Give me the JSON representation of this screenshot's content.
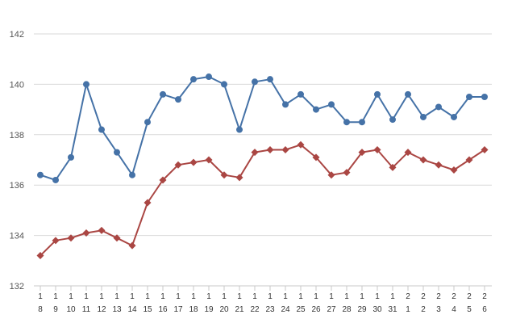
{
  "chart_data": {
    "type": "line",
    "title": "",
    "xlabel": "",
    "ylabel": "",
    "ylim": [
      132,
      142
    ],
    "yticks": [
      132,
      134,
      136,
      138,
      140,
      142
    ],
    "grid": true,
    "legend": "none",
    "categories": [
      [
        "1",
        "8"
      ],
      [
        "1",
        "9"
      ],
      [
        "1",
        "10"
      ],
      [
        "1",
        "11"
      ],
      [
        "1",
        "12"
      ],
      [
        "1",
        "13"
      ],
      [
        "1",
        "14"
      ],
      [
        "1",
        "15"
      ],
      [
        "1",
        "16"
      ],
      [
        "1",
        "17"
      ],
      [
        "1",
        "18"
      ],
      [
        "1",
        "19"
      ],
      [
        "1",
        "20"
      ],
      [
        "1",
        "21"
      ],
      [
        "1",
        "22"
      ],
      [
        "1",
        "23"
      ],
      [
        "1",
        "24"
      ],
      [
        "1",
        "25"
      ],
      [
        "1",
        "26"
      ],
      [
        "1",
        "27"
      ],
      [
        "1",
        "28"
      ],
      [
        "1",
        "29"
      ],
      [
        "1",
        "30"
      ],
      [
        "1",
        "31"
      ],
      [
        "2",
        "1"
      ],
      [
        "2",
        "2"
      ],
      [
        "2",
        "3"
      ],
      [
        "2",
        "4"
      ],
      [
        "2",
        "5"
      ],
      [
        "2",
        "6"
      ]
    ],
    "series": [
      {
        "color": "#4572a7",
        "marker": "circle",
        "values": [
          136.4,
          136.2,
          137.1,
          140.0,
          138.2,
          137.3,
          136.4,
          138.5,
          139.6,
          139.4,
          140.2,
          140.3,
          140.0,
          138.2,
          140.1,
          140.2,
          139.2,
          139.6,
          139.0,
          139.2,
          138.5,
          138.5,
          139.6,
          138.6,
          139.6,
          138.7,
          139.1,
          138.7,
          139.5,
          139.5
        ]
      },
      {
        "color": "#aa4643",
        "marker": "diamond",
        "values": [
          133.2,
          133.8,
          133.9,
          134.1,
          134.2,
          133.9,
          133.6,
          135.3,
          136.2,
          136.8,
          136.9,
          137.0,
          136.4,
          136.3,
          137.3,
          137.4,
          137.4,
          137.6,
          137.1,
          136.4,
          136.5,
          137.3,
          137.4,
          136.7,
          137.3,
          137.0,
          136.8,
          136.6,
          137.0,
          137.4
        ]
      }
    ]
  }
}
